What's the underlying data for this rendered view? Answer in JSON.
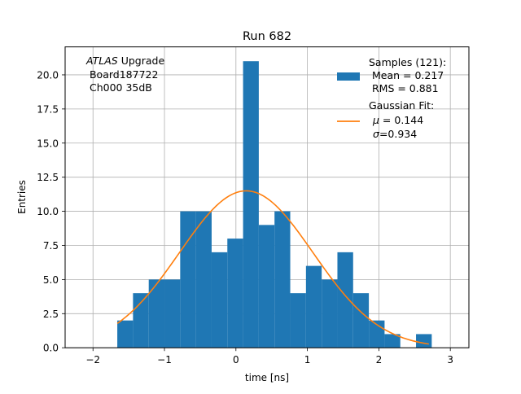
{
  "chart_data": {
    "type": "bar",
    "title": "Run 682",
    "xlabel": "time [ns]",
    "ylabel": "Entries",
    "xlim": [
      -2.39,
      3.26
    ],
    "ylim": [
      0,
      22.05
    ],
    "grid": true,
    "x_ticks": [
      -2,
      -1,
      0,
      1,
      2,
      3
    ],
    "x_tick_labels": [
      "−2",
      "−1",
      "0",
      "1",
      "2",
      "3"
    ],
    "y_ticks": [
      0,
      2.5,
      5,
      7.5,
      10,
      12.5,
      15,
      17.5,
      20
    ],
    "y_tick_labels": [
      "0.0",
      "2.5",
      "5.0",
      "7.5",
      "10.0",
      "12.5",
      "15.0",
      "17.5",
      "20.0"
    ],
    "histogram": {
      "bin_edges": [
        -1.66,
        -1.44,
        -1.22,
        -1.0,
        -0.78,
        -0.56,
        -0.34,
        -0.12,
        0.1,
        0.32,
        0.54,
        0.76,
        0.98,
        1.2,
        1.42,
        1.64,
        1.86,
        2.08,
        2.3,
        2.52,
        2.74
      ],
      "counts": [
        2,
        4,
        5,
        5,
        10,
        10,
        7,
        8,
        21,
        9,
        10,
        4,
        6,
        5,
        7,
        4,
        2,
        1,
        0,
        1
      ],
      "color": "#1f77b4"
    },
    "fit": {
      "type": "gaussian",
      "mu": 0.144,
      "sigma": 0.934,
      "amplitude": 11.5,
      "x_range": [
        -1.66,
        2.7
      ],
      "color": "#ff7f0e"
    },
    "annotation": {
      "italic": "ATLAS",
      "rest": " Upgrade",
      "line2": " Board187722",
      "line3": " Ch000 35dB"
    },
    "legend": {
      "placement": "top-right",
      "samples_l1": "Samples (121):",
      "samples_l2": " Mean = 0.217",
      "samples_l3": " RMS = 0.881",
      "fit_l1": "Gaussian Fit:",
      "fit_l2": " = 0.144",
      "fit_l3": "=0.934",
      "mu_symbol": "μ",
      "sigma_symbol": "σ"
    }
  }
}
